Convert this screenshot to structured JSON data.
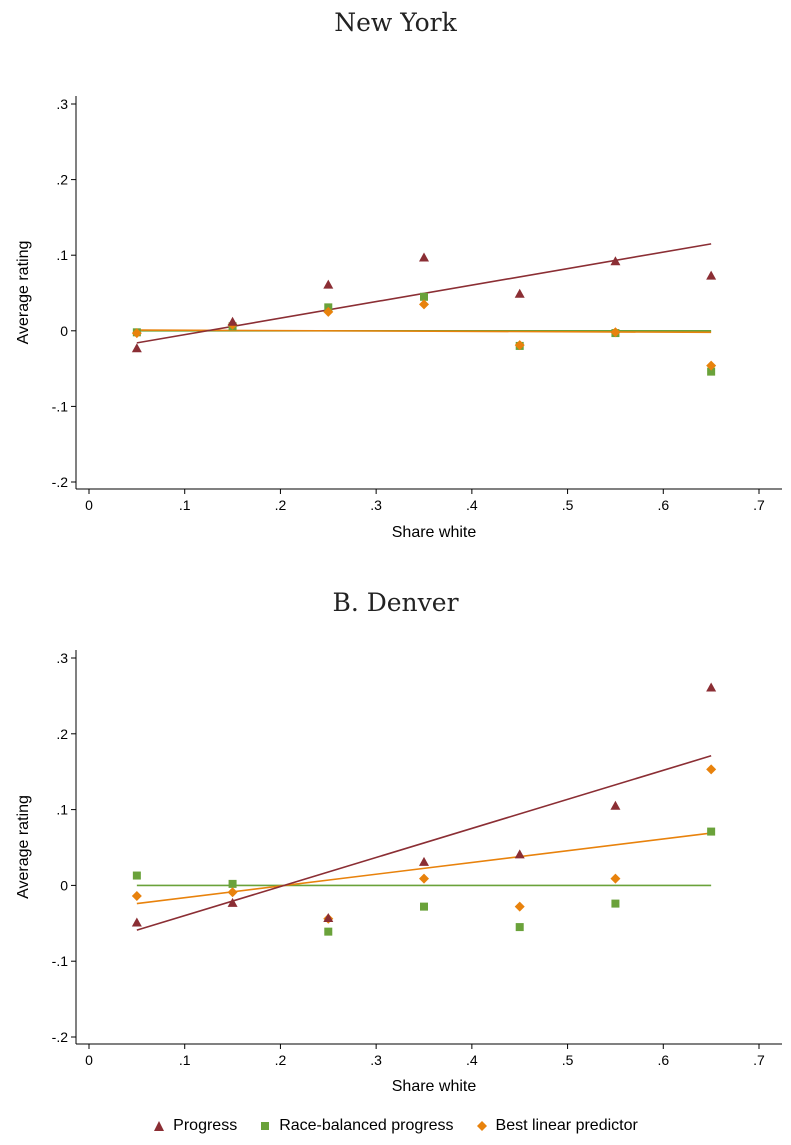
{
  "colors": {
    "progress": "#8b2e34",
    "race_balanced": "#6aa23a",
    "best_linear": "#e8820c"
  },
  "legend": [
    {
      "key": "progress",
      "label": "Progress",
      "marker": "triangle"
    },
    {
      "key": "race_balanced",
      "label": "Race-balanced progress",
      "marker": "square"
    },
    {
      "key": "best_linear",
      "label": "Best linear predictor",
      "marker": "diamond"
    }
  ],
  "chart_data": [
    {
      "type": "scatter",
      "title": "New York",
      "xlabel": "Share white",
      "ylabel": "Average rating",
      "xlim": [
        0,
        0.7
      ],
      "ylim": [
        -0.2,
        0.3
      ],
      "xticks": [
        {
          "v": 0,
          "label": "0"
        },
        {
          "v": 0.1,
          "label": ".1"
        },
        {
          "v": 0.2,
          "label": ".2"
        },
        {
          "v": 0.3,
          "label": ".3"
        },
        {
          "v": 0.4,
          "label": ".4"
        },
        {
          "v": 0.5,
          "label": ".5"
        },
        {
          "v": 0.6,
          "label": ".6"
        },
        {
          "v": 0.7,
          "label": ".7"
        }
      ],
      "yticks": [
        {
          "v": -0.2,
          "label": "-.2"
        },
        {
          "v": -0.1,
          "label": "-.1"
        },
        {
          "v": 0,
          "label": "0"
        },
        {
          "v": 0.1,
          "label": ".1"
        },
        {
          "v": 0.2,
          "label": ".2"
        },
        {
          "v": 0.3,
          "label": ".3"
        }
      ],
      "x": [
        0.05,
        0.15,
        0.25,
        0.35,
        0.45,
        0.55,
        0.65
      ],
      "series": [
        {
          "key": "progress",
          "marker": "triangle",
          "values": [
            -0.023,
            0.012,
            0.061,
            0.097,
            0.049,
            0.092,
            0.073
          ],
          "fit": [
            [
              0.05,
              -0.016
            ],
            [
              0.65,
              0.115
            ]
          ]
        },
        {
          "key": "race_balanced",
          "marker": "square",
          "values": [
            -0.002,
            0.006,
            0.031,
            0.045,
            -0.02,
            -0.003,
            -0.054
          ],
          "fit": [
            [
              0.05,
              0.0
            ],
            [
              0.65,
              0.0
            ]
          ]
        },
        {
          "key": "best_linear",
          "marker": "diamond",
          "values": [
            -0.003,
            0.008,
            0.025,
            0.035,
            -0.019,
            -0.002,
            -0.046
          ],
          "fit": [
            [
              0.05,
              0.001
            ],
            [
              0.65,
              -0.002
            ]
          ]
        }
      ]
    },
    {
      "type": "scatter",
      "title": "B. Denver",
      "xlabel": "Share white",
      "ylabel": "Average rating",
      "xlim": [
        0,
        0.7
      ],
      "ylim": [
        -0.2,
        0.3
      ],
      "xticks": [
        {
          "v": 0,
          "label": "0"
        },
        {
          "v": 0.1,
          "label": ".1"
        },
        {
          "v": 0.2,
          "label": ".2"
        },
        {
          "v": 0.3,
          "label": ".3"
        },
        {
          "v": 0.4,
          "label": ".4"
        },
        {
          "v": 0.5,
          "label": ".5"
        },
        {
          "v": 0.6,
          "label": ".6"
        },
        {
          "v": 0.7,
          "label": ".7"
        }
      ],
      "yticks": [
        {
          "v": -0.2,
          "label": "-.2"
        },
        {
          "v": -0.1,
          "label": "-.1"
        },
        {
          "v": 0,
          "label": "0"
        },
        {
          "v": 0.1,
          "label": ".1"
        },
        {
          "v": 0.2,
          "label": ".2"
        },
        {
          "v": 0.3,
          "label": ".3"
        }
      ],
      "x": [
        0.05,
        0.15,
        0.25,
        0.35,
        0.45,
        0.55,
        0.65
      ],
      "series": [
        {
          "key": "progress",
          "marker": "triangle",
          "values": [
            -0.049,
            -0.023,
            -0.043,
            0.031,
            0.041,
            0.105,
            0.261
          ],
          "fit": [
            [
              0.05,
              -0.059
            ],
            [
              0.65,
              0.171
            ]
          ]
        },
        {
          "key": "race_balanced",
          "marker": "square",
          "values": [
            0.013,
            0.002,
            -0.061,
            -0.028,
            -0.055,
            -0.024,
            0.071
          ],
          "fit": [
            [
              0.05,
              0.0
            ],
            [
              0.65,
              0.0
            ]
          ]
        },
        {
          "key": "best_linear",
          "marker": "diamond",
          "values": [
            -0.014,
            -0.009,
            -0.044,
            0.009,
            -0.028,
            0.009,
            0.153
          ],
          "fit": [
            [
              0.05,
              -0.024
            ],
            [
              0.65,
              0.069
            ]
          ]
        }
      ]
    }
  ]
}
